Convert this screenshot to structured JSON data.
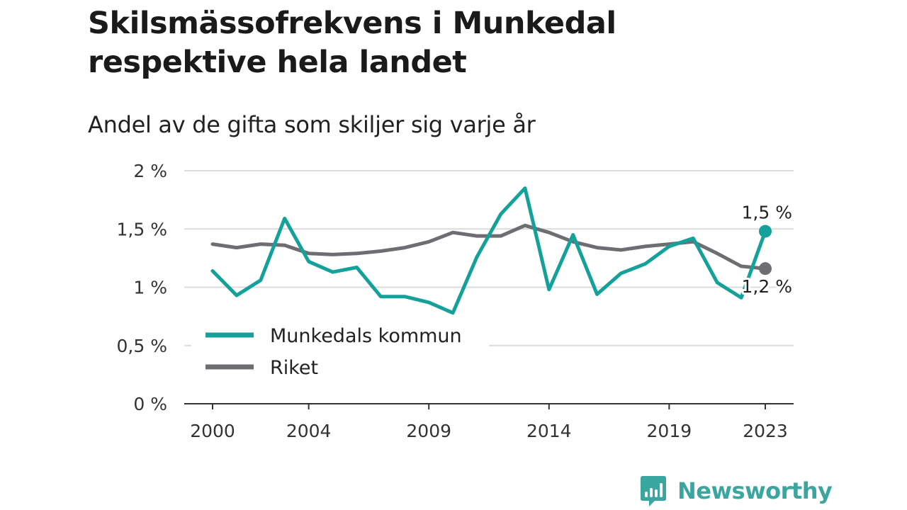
{
  "title_line1": "Skilsmässofrekvens i Munkedal",
  "title_line2": "respektive hela landet",
  "subtitle": "Andel av de gifta som skiljer sig varje år",
  "brand": {
    "name": "Newsworthy",
    "icon": "newsworthy-logo-icon",
    "color": "#3aa69f"
  },
  "chart_data": {
    "type": "line",
    "title": "Skilsmässofrekvens i Munkedal respektive hela landet",
    "subtitle": "Andel av de gifta som skiljer sig varje år",
    "xlabel": "",
    "ylabel": "",
    "x": [
      2000,
      2001,
      2002,
      2003,
      2004,
      2005,
      2006,
      2007,
      2008,
      2009,
      2010,
      2011,
      2012,
      2013,
      2014,
      2015,
      2016,
      2017,
      2018,
      2019,
      2020,
      2021,
      2022,
      2023
    ],
    "xlim": [
      2000,
      2023
    ],
    "xticks": [
      2000,
      2004,
      2009,
      2014,
      2019,
      2023
    ],
    "xtick_labels": [
      "2000",
      "2004",
      "2009",
      "2014",
      "2019",
      "2023"
    ],
    "ylim": [
      0,
      2
    ],
    "yticks": [
      0,
      0.5,
      1,
      1.5,
      2
    ],
    "ytick_labels": [
      "0 %",
      "0,5 %",
      "1 %",
      "1,5 %",
      "2 %"
    ],
    "grid": true,
    "legend_position": "bottom-left",
    "series": [
      {
        "name": "Munkedals kommun",
        "color": "#14a19a",
        "values": [
          1.14,
          0.93,
          1.06,
          1.59,
          1.22,
          1.13,
          1.17,
          0.92,
          0.92,
          0.87,
          0.78,
          1.26,
          1.63,
          1.85,
          0.98,
          1.45,
          0.94,
          1.12,
          1.2,
          1.35,
          1.42,
          1.04,
          0.91,
          1.48
        ],
        "end_label": "1,5 %"
      },
      {
        "name": "Riket",
        "color": "#6e6d72",
        "values": [
          1.37,
          1.34,
          1.37,
          1.36,
          1.29,
          1.28,
          1.29,
          1.31,
          1.34,
          1.39,
          1.47,
          1.44,
          1.44,
          1.53,
          1.47,
          1.39,
          1.34,
          1.32,
          1.35,
          1.37,
          1.39,
          1.29,
          1.18,
          1.16
        ],
        "end_label": "1,2 %"
      }
    ]
  }
}
